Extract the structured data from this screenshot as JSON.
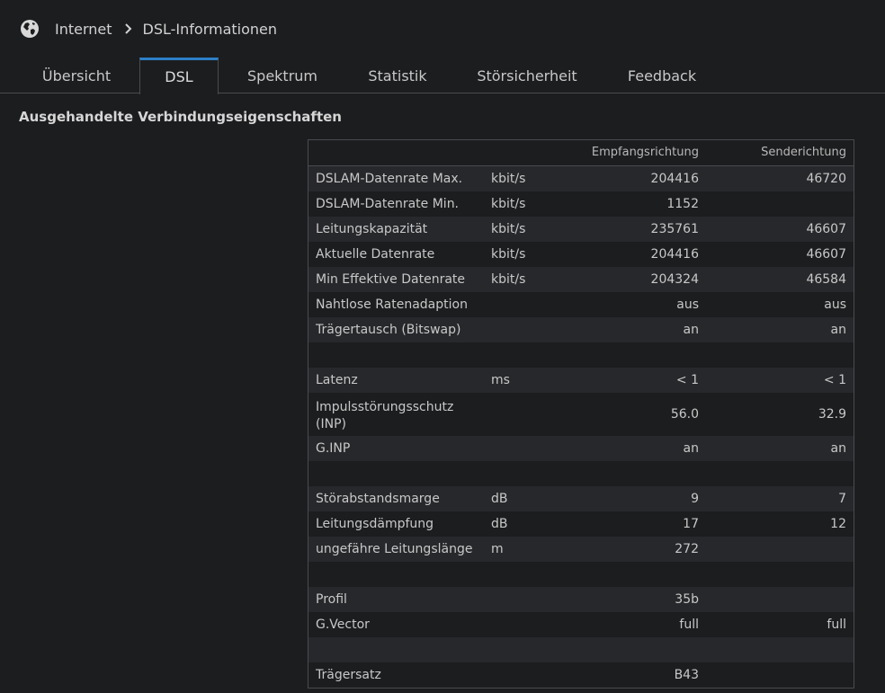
{
  "breadcrumb": {
    "items": [
      "Internet",
      "DSL-Informationen"
    ],
    "icon": "globe-icon"
  },
  "tabs": [
    {
      "label": "Übersicht",
      "active": false
    },
    {
      "label": "DSL",
      "active": true
    },
    {
      "label": "Spektrum",
      "active": false
    },
    {
      "label": "Statistik",
      "active": false
    },
    {
      "label": "Störsicherheit",
      "active": false
    },
    {
      "label": "Feedback",
      "active": false
    }
  ],
  "section_title": "Ausgehandelte Verbindungseigenschaften",
  "table": {
    "headers": {
      "label": "",
      "unit": "",
      "down": "Empfangsrichtung",
      "up": "Senderichtung"
    },
    "rows": [
      {
        "label": "DSLAM-Datenrate Max.",
        "unit": "kbit/s",
        "down": "204416",
        "up": "46720"
      },
      {
        "label": "DSLAM-Datenrate Min.",
        "unit": "kbit/s",
        "down": "1152",
        "up": ""
      },
      {
        "label": "Leitungskapazität",
        "unit": "kbit/s",
        "down": "235761",
        "up": "46607"
      },
      {
        "label": "Aktuelle Datenrate",
        "unit": "kbit/s",
        "down": "204416",
        "up": "46607"
      },
      {
        "label": "Min Effektive Datenrate",
        "unit": "kbit/s",
        "down": "204324",
        "up": "46584"
      },
      {
        "label": "Nahtlose Ratenadaption",
        "unit": "",
        "down": "aus",
        "up": "aus"
      },
      {
        "label": "Trägertausch (Bitswap)",
        "unit": "",
        "down": "an",
        "up": "an"
      },
      {
        "label": "",
        "unit": "",
        "down": "",
        "up": ""
      },
      {
        "label": "Latenz",
        "unit": "ms",
        "down": "< 1",
        "up": "< 1"
      },
      {
        "label": "Impulsstörungsschutz (INP)",
        "unit": "",
        "down": "56.0",
        "up": "32.9"
      },
      {
        "label": "G.INP",
        "unit": "",
        "down": "an",
        "up": "an"
      },
      {
        "label": "",
        "unit": "",
        "down": "",
        "up": ""
      },
      {
        "label": "Störabstandsmarge",
        "unit": "dB",
        "down": "9",
        "up": "7"
      },
      {
        "label": "Leitungsdämpfung",
        "unit": "dB",
        "down": "17",
        "up": "12"
      },
      {
        "label": "ungefähre Leitungslänge",
        "unit": "m",
        "down": "272",
        "up": ""
      },
      {
        "label": "",
        "unit": "",
        "down": "",
        "up": ""
      },
      {
        "label": "Profil",
        "unit": "",
        "down": "35b",
        "up": ""
      },
      {
        "label": "G.Vector",
        "unit": "",
        "down": "full",
        "up": "full"
      },
      {
        "label": "",
        "unit": "",
        "down": "",
        "up": ""
      },
      {
        "label": "Trägersatz",
        "unit": "",
        "down": "B43",
        "up": ""
      }
    ]
  }
}
